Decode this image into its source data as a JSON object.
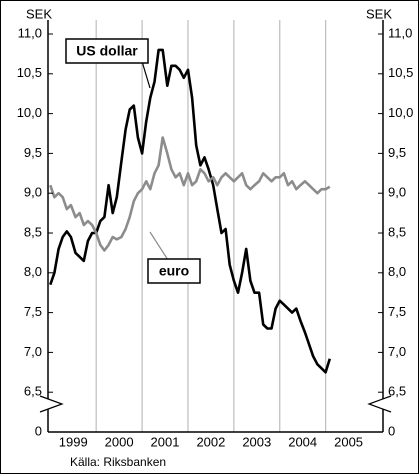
{
  "chart_data": {
    "type": "line",
    "y_unit_left": "SEK",
    "y_unit_right": "SEK",
    "source": "Källa: Riksbanken",
    "ylim": [
      6.0,
      11.0
    ],
    "yticks": [
      {
        "value": 11.0,
        "label": "11,0"
      },
      {
        "value": 10.5,
        "label": "10,5"
      },
      {
        "value": 10.0,
        "label": "10,0"
      },
      {
        "value": 9.5,
        "label": "9,5"
      },
      {
        "value": 9.0,
        "label": "9,0"
      },
      {
        "value": 8.5,
        "label": "8,5"
      },
      {
        "value": 8.0,
        "label": "8,0"
      },
      {
        "value": 7.5,
        "label": "7,5"
      },
      {
        "value": 7.0,
        "label": "7,0"
      },
      {
        "value": 6.5,
        "label": "6,5"
      },
      0
    ],
    "axis_break": true,
    "xlim": [
      1998.95,
      2006.25
    ],
    "xticks": [
      {
        "value": 1999.5,
        "label": "1999"
      },
      {
        "value": 2000.5,
        "label": "2000"
      },
      {
        "value": 2001.5,
        "label": "2001"
      },
      {
        "value": 2002.5,
        "label": "2002"
      },
      {
        "value": 2003.5,
        "label": "2003"
      },
      {
        "value": 2004.5,
        "label": "2004"
      },
      {
        "value": 2005.5,
        "label": "2005"
      }
    ],
    "xgrid": [
      2000,
      2001,
      2002,
      2003,
      2004,
      2005
    ],
    "x": [
      1999.0,
      1999.09,
      1999.18,
      1999.27,
      1999.36,
      1999.45,
      1999.55,
      1999.64,
      1999.73,
      1999.82,
      1999.91,
      2000.0,
      2000.09,
      2000.18,
      2000.27,
      2000.36,
      2000.45,
      2000.55,
      2000.64,
      2000.73,
      2000.82,
      2000.91,
      2001.0,
      2001.09,
      2001.18,
      2001.27,
      2001.36,
      2001.45,
      2001.55,
      2001.64,
      2001.73,
      2001.82,
      2001.91,
      2002.0,
      2002.09,
      2002.18,
      2002.27,
      2002.36,
      2002.45,
      2002.55,
      2002.64,
      2002.73,
      2002.82,
      2002.91,
      2003.0,
      2003.09,
      2003.18,
      2003.27,
      2003.36,
      2003.45,
      2003.55,
      2003.64,
      2003.73,
      2003.82,
      2003.91,
      2004.0,
      2004.09,
      2004.18,
      2004.27,
      2004.36,
      2004.45,
      2004.55,
      2004.64,
      2004.73,
      2004.82,
      2004.91,
      2005.0,
      2005.09
    ],
    "series": [
      {
        "name": "US dollar",
        "color": "#000000",
        "values": [
          7.85,
          8.0,
          8.3,
          8.45,
          8.52,
          8.45,
          8.25,
          8.2,
          8.15,
          8.4,
          8.5,
          8.5,
          8.65,
          8.7,
          9.1,
          8.75,
          8.95,
          9.4,
          9.8,
          10.05,
          10.1,
          9.7,
          9.5,
          9.9,
          10.2,
          10.4,
          10.8,
          10.8,
          10.35,
          10.6,
          10.6,
          10.55,
          10.45,
          10.55,
          10.2,
          9.6,
          9.35,
          9.45,
          9.3,
          9.1,
          8.8,
          8.5,
          8.55,
          8.1,
          7.9,
          7.75,
          8.0,
          8.3,
          7.9,
          7.75,
          7.75,
          7.35,
          7.3,
          7.3,
          7.55,
          7.65,
          7.6,
          7.55,
          7.5,
          7.55,
          7.4,
          7.25,
          7.1,
          6.95,
          6.85,
          6.8,
          6.75,
          6.92
        ]
      },
      {
        "name": "euro",
        "color": "#8c8c8c",
        "values": [
          9.1,
          8.95,
          9.0,
          8.95,
          8.8,
          8.85,
          8.7,
          8.75,
          8.6,
          8.65,
          8.6,
          8.5,
          8.35,
          8.28,
          8.35,
          8.45,
          8.42,
          8.45,
          8.55,
          8.7,
          8.9,
          9.0,
          9.05,
          9.15,
          9.05,
          9.25,
          9.35,
          9.7,
          9.5,
          9.3,
          9.2,
          9.25,
          9.1,
          9.25,
          9.1,
          9.15,
          9.3,
          9.25,
          9.15,
          9.2,
          9.1,
          9.2,
          9.25,
          9.2,
          9.15,
          9.2,
          9.25,
          9.1,
          9.05,
          9.1,
          9.15,
          9.25,
          9.2,
          9.15,
          9.2,
          9.2,
          9.25,
          9.1,
          9.15,
          9.05,
          9.1,
          9.15,
          9.1,
          9.05,
          9.0,
          9.05,
          9.05,
          9.08
        ]
      }
    ]
  }
}
